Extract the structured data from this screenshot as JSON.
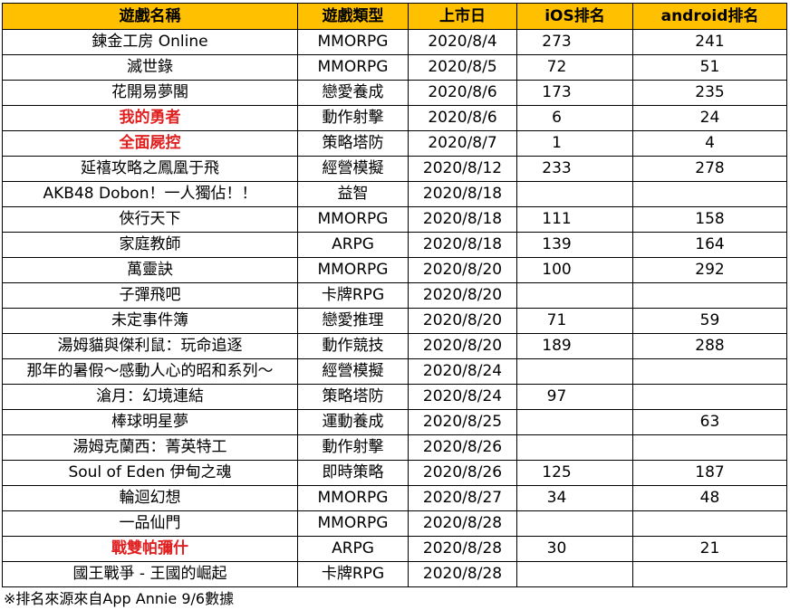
{
  "headers": {
    "name": "遊戲名稱",
    "genre": "遊戲類型",
    "release": "上市日",
    "ios": "iOS排名",
    "android": "android排名"
  },
  "rows": [
    {
      "name": "鍊金工房 Online",
      "genre": "MMORPG",
      "release": "2020/8/4",
      "ios": "273",
      "android": "241",
      "highlight": false
    },
    {
      "name": "滅世錄",
      "genre": "MMORPG",
      "release": "2020/8/5",
      "ios": "72",
      "android": "51",
      "highlight": false
    },
    {
      "name": "花開易夢閣",
      "genre": "戀愛養成",
      "release": "2020/8/6",
      "ios": "173",
      "android": "235",
      "highlight": false
    },
    {
      "name": "我的勇者",
      "genre": "動作射擊",
      "release": "2020/8/6",
      "ios": "6",
      "android": "24",
      "highlight": true
    },
    {
      "name": "全面屍控",
      "genre": "策略塔防",
      "release": "2020/8/7",
      "ios": "1",
      "android": "4",
      "highlight": true
    },
    {
      "name": "延禧攻略之鳳凰于飛",
      "genre": "經營模擬",
      "release": "2020/8/12",
      "ios": "233",
      "android": "278",
      "highlight": false
    },
    {
      "name": "AKB48 Dobon！一人獨佔！！",
      "genre": "益智",
      "release": "2020/8/18",
      "ios": "",
      "android": "",
      "highlight": false
    },
    {
      "name": "俠行天下",
      "genre": "MMORPG",
      "release": "2020/8/18",
      "ios": "111",
      "android": "158",
      "highlight": false
    },
    {
      "name": "家庭教師",
      "genre": "ARPG",
      "release": "2020/8/18",
      "ios": "139",
      "android": "164",
      "highlight": false
    },
    {
      "name": "萬靈訣",
      "genre": "MMORPG",
      "release": "2020/8/20",
      "ios": "100",
      "android": "292",
      "highlight": false
    },
    {
      "name": "子彈飛吧",
      "genre": "卡牌RPG",
      "release": "2020/8/20",
      "ios": "",
      "android": "",
      "highlight": false
    },
    {
      "name": "未定事件簿",
      "genre": "戀愛推理",
      "release": "2020/8/20",
      "ios": "71",
      "android": "59",
      "highlight": false
    },
    {
      "name": "湯姆貓與傑利鼠：玩命追逐",
      "genre": "動作競技",
      "release": "2020/8/20",
      "ios": "189",
      "android": "288",
      "highlight": false
    },
    {
      "name": "那年的暑假～感動人心的昭和系列～",
      "genre": "經營模擬",
      "release": "2020/8/24",
      "ios": "",
      "android": "",
      "highlight": false
    },
    {
      "name": "滄月：幻境連結",
      "genre": "策略塔防",
      "release": "2020/8/24",
      "ios": "97",
      "android": "",
      "highlight": false
    },
    {
      "name": "棒球明星夢",
      "genre": "運動養成",
      "release": "2020/8/25",
      "ios": "",
      "android": "63",
      "highlight": false
    },
    {
      "name": "湯姆克蘭西：菁英特工",
      "genre": "動作射擊",
      "release": "2020/8/26",
      "ios": "",
      "android": "",
      "highlight": false
    },
    {
      "name": "Soul of Eden 伊甸之魂",
      "genre": "即時策略",
      "release": "2020/8/26",
      "ios": "125",
      "android": "187",
      "highlight": false
    },
    {
      "name": "輪迴幻想",
      "genre": "MMORPG",
      "release": "2020/8/27",
      "ios": "34",
      "android": "48",
      "highlight": false
    },
    {
      "name": "一品仙門",
      "genre": "MMORPG",
      "release": "2020/8/28",
      "ios": "",
      "android": "",
      "highlight": false
    },
    {
      "name": "戰雙帕彌什",
      "genre": "ARPG",
      "release": "2020/8/28",
      "ios": "30",
      "android": "21",
      "highlight": true
    },
    {
      "name": "國王戰爭 - 王國的崛起",
      "genre": "卡牌RPG",
      "release": "2020/8/28",
      "ios": "",
      "android": "",
      "highlight": false
    }
  ],
  "note": "※排名來源來自App Annie 9/6數據",
  "colors": {
    "header_bg": "#ffc000",
    "highlight_text": "#e02020",
    "border": "#000000"
  }
}
